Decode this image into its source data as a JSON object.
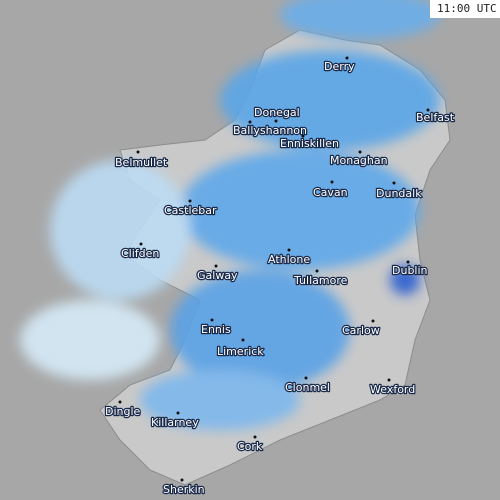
{
  "timestamp": "11:00 UTC",
  "places": [
    "Derry",
    "Donegal",
    "Belfast",
    "Ballyshannon",
    "Enniskillen",
    "Belmullet",
    "Monaghan",
    "Cavan",
    "Dundalk",
    "Castlebar",
    "Clifden",
    "Athlone",
    "Dublin",
    "Galway",
    "Tullamore",
    "Carlow",
    "Ennis",
    "Limerick",
    "Clonmel",
    "Wexford",
    "Dingle",
    "Killarney",
    "Cork",
    "Sherkin"
  ]
}
